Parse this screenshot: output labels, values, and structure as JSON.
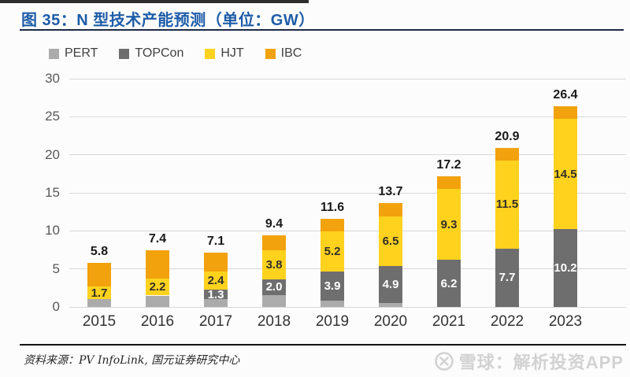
{
  "header": {
    "title": "图 35：N 型技术产能预测（单位：GW）"
  },
  "chart_data": {
    "type": "bar",
    "stacked": true,
    "title": "图 35：N 型技术产能预测（单位：GW）",
    "unit": "GW",
    "categories": [
      "2015",
      "2016",
      "2017",
      "2018",
      "2019",
      "2020",
      "2021",
      "2022",
      "2023"
    ],
    "series": [
      {
        "name": "PERT",
        "color": "#ababab",
        "values": [
          1.0,
          1.5,
          1.0,
          1.6,
          0.8,
          0.5,
          0,
          0,
          0
        ],
        "labels": null,
        "label_color": null
      },
      {
        "name": "TOPCon",
        "color": "#6e6e6e",
        "values": [
          0,
          0,
          1.3,
          2.0,
          3.9,
          4.9,
          6.2,
          7.7,
          10.2
        ],
        "labels": [
          "",
          "",
          "1.3",
          "2.0",
          "3.9",
          "4.9",
          "6.2",
          "7.7",
          "10.2"
        ],
        "label_color": "#ffffff"
      },
      {
        "name": "HJT",
        "color": "#ffd21e",
        "values": [
          1.7,
          2.2,
          2.4,
          3.8,
          5.2,
          6.5,
          9.3,
          11.5,
          14.5
        ],
        "labels": [
          "1.7",
          "2.2",
          "2.4",
          "3.8",
          "5.2",
          "6.5",
          "9.3",
          "11.5",
          "14.5"
        ],
        "label_color": "#33302a"
      },
      {
        "name": "IBC",
        "color": "#f2a20c",
        "values": [
          3.1,
          3.7,
          2.4,
          2.0,
          1.7,
          1.8,
          1.7,
          1.7,
          1.7
        ],
        "labels": null,
        "label_color": null
      }
    ],
    "totals": [
      "5.8",
      "7.4",
      "7.1",
      "9.4",
      "11.6",
      "13.7",
      "17.2",
      "20.9",
      "26.4"
    ],
    "yticks": [
      0,
      5,
      10,
      15,
      20,
      25,
      30
    ],
    "ylim": [
      0,
      30
    ],
    "grid": true,
    "legend_position": "top-left"
  },
  "footer": {
    "source": "资料来源：PV InfoLink, 国元证券研究中心",
    "watermark": "雪球：解析投资APP",
    "watermark_logo": "xueqiu-snowball-icon"
  },
  "colors": {
    "title_blue": "#1d5ca8",
    "underline_navy": "#1d2a45",
    "gridline_gray": "#d8d8d8",
    "axis_text_gray": "#595959",
    "watermark_gray": "#d2d2d2"
  }
}
